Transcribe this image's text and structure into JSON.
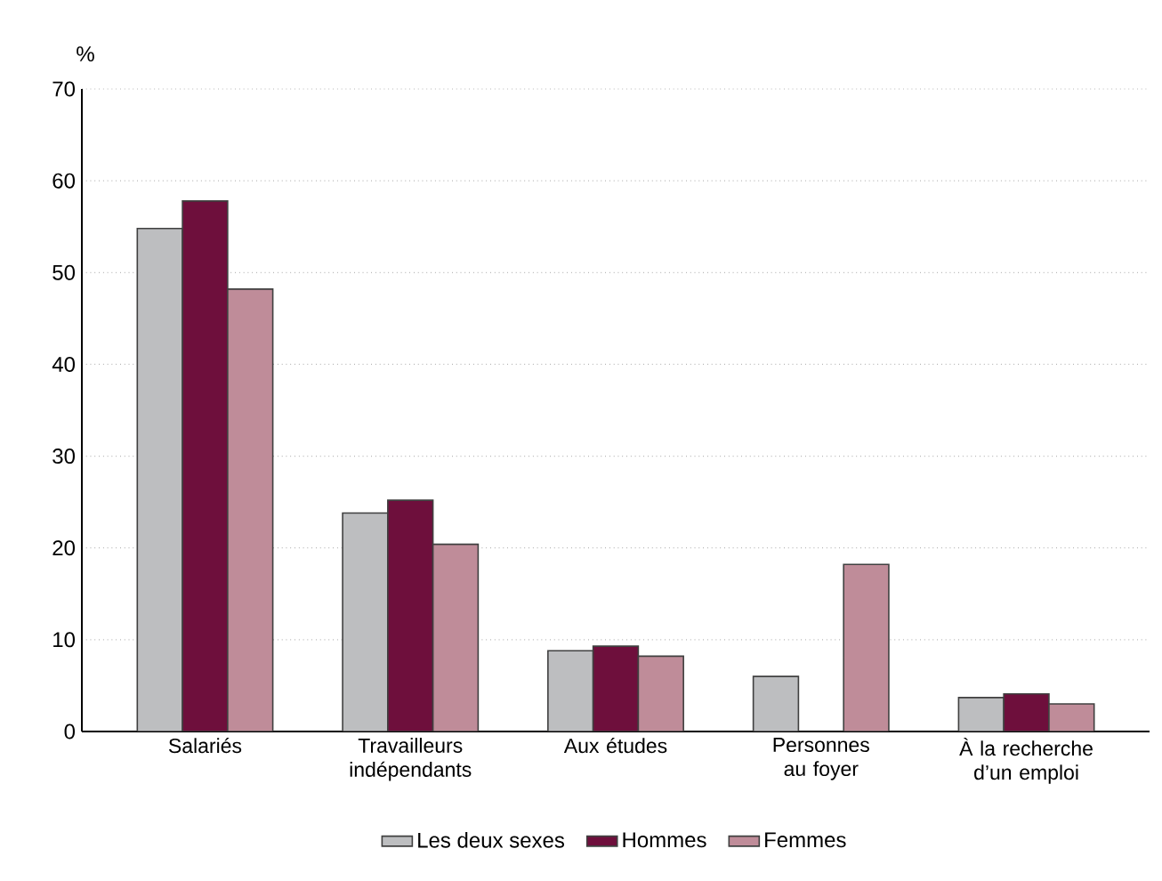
{
  "chart_data": {
    "type": "bar",
    "ylabel": "%",
    "categories": [
      "Salariés",
      "Travailleurs indépendants",
      "Aux études",
      "Personnes au foyer",
      "À la recherche d’un emploi"
    ],
    "series": [
      {
        "name": "Les deux sexes",
        "color": "#bdbec0",
        "values": [
          54.8,
          23.8,
          8.8,
          6.0,
          3.7
        ]
      },
      {
        "name": "Hommes",
        "color": "#6e0f3c",
        "values": [
          57.8,
          25.2,
          9.3,
          null,
          4.1
        ]
      },
      {
        "name": "Femmes",
        "color": "#bf8c99",
        "values": [
          48.2,
          20.4,
          8.2,
          18.2,
          3.0
        ]
      }
    ],
    "ylim": [
      0,
      70
    ],
    "yticks": [
      0,
      10,
      20,
      30,
      40,
      50,
      60,
      70
    ],
    "grid": "y",
    "legend": "bottom"
  }
}
